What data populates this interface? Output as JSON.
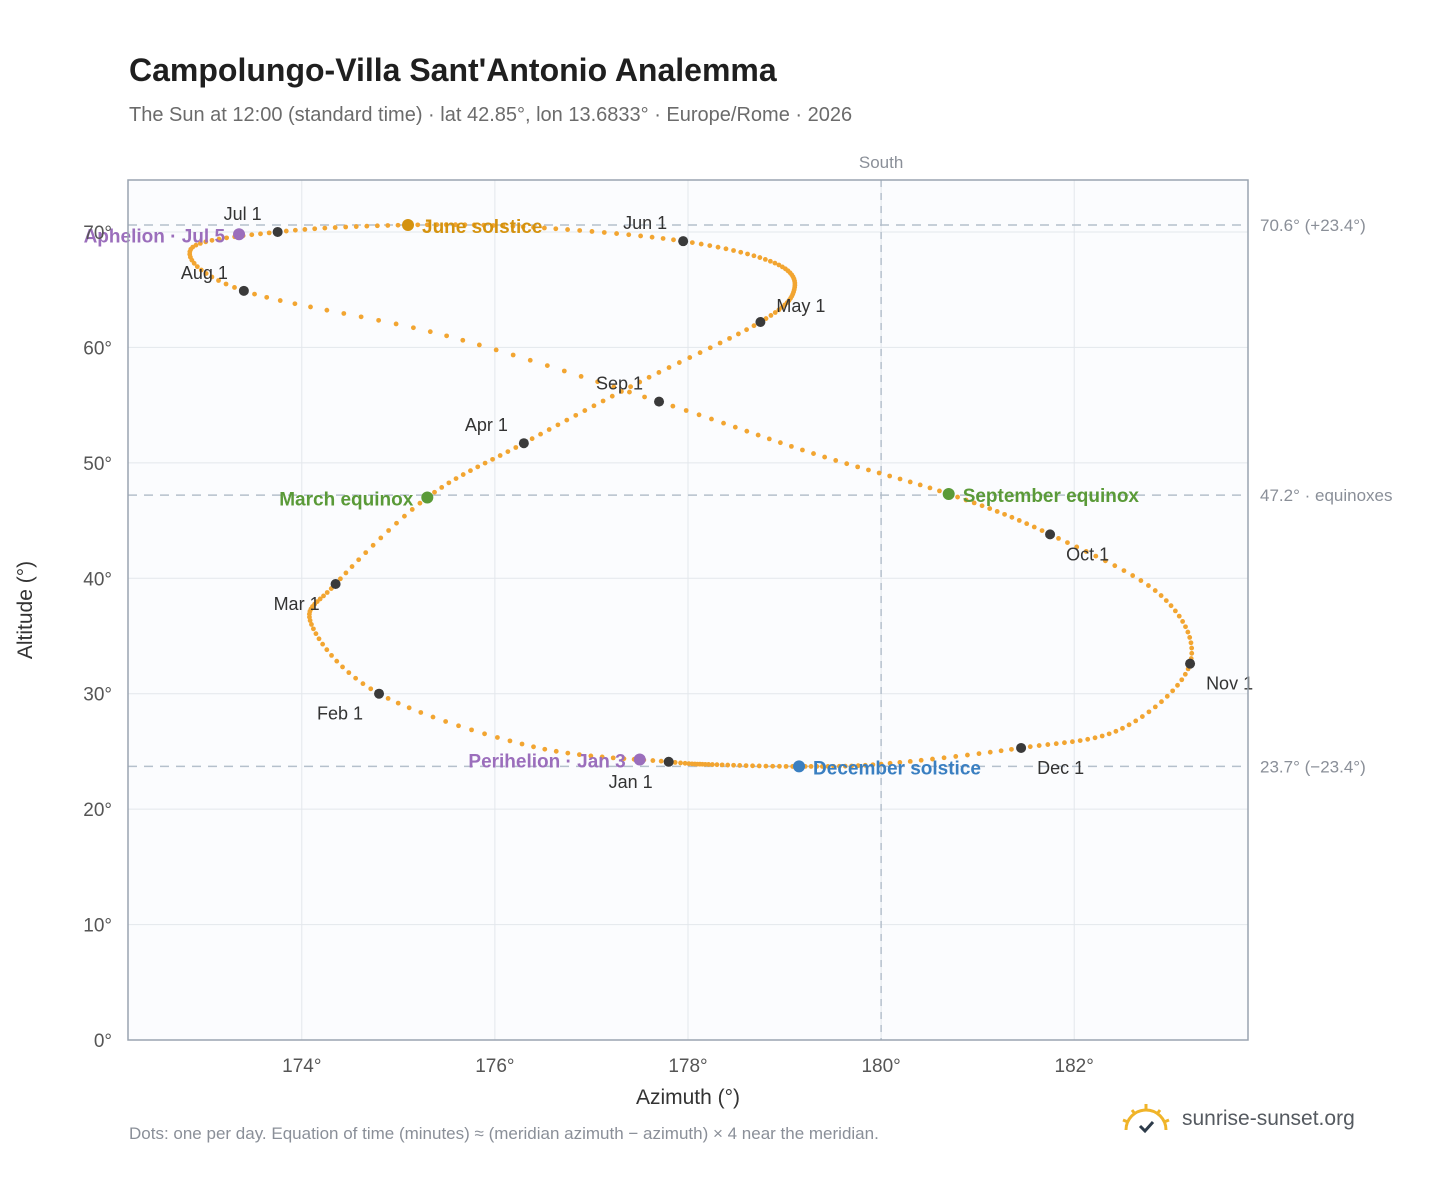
{
  "header": {
    "title": "Campolungo-Villa Sant'Antonio Analemma",
    "subtitle": "The Sun at 12:00 (standard time) · lat 42.85°, lon 13.6833° · Europe/Rome · 2026"
  },
  "footer": {
    "note": "Dots: one per day. Equation of time (minutes) ≈ (meridian azimuth − azimuth) × 4 near the meridian.",
    "brand": "sunrise-sunset.org",
    "brand_icon": "sun-logo-icon"
  },
  "colors": {
    "curve": "#f2a531",
    "month_marker": "#3a3a3a",
    "june_solstice": "#d4920f",
    "december_solstice": "#3a7fc1",
    "equinox": "#5a9a38",
    "apsis": "#9b6ebc",
    "reference_line": "#b5c0cc",
    "plot_bg": "#fbfcfe"
  },
  "chart_data": {
    "type": "scatter",
    "title": "Campolungo-Villa Sant'Antonio Analemma",
    "subtitle": "The Sun at 12:00 (standard time) · lat 42.85°, lon 13.6833° · Europe/Rome · 2026",
    "xlabel": "Azimuth (°)",
    "ylabel": "Altitude (°)",
    "xlim": [
      172.2,
      183.8
    ],
    "ylim": [
      0,
      74.5
    ],
    "x_ticks": [
      174,
      176,
      178,
      180,
      182
    ],
    "x_tick_labels": [
      "174°",
      "176°",
      "178°",
      "180°",
      "182°"
    ],
    "y_ticks": [
      0,
      10,
      20,
      30,
      40,
      50,
      60,
      70
    ],
    "y_tick_labels": [
      "0°",
      "10°",
      "20°",
      "30°",
      "40°",
      "50°",
      "60°",
      "70°"
    ],
    "grid": true,
    "south_line": {
      "azimuth": 180,
      "label": "South"
    },
    "reference_lines": [
      {
        "altitude": 70.6,
        "label": "70.6° (+23.4°)"
      },
      {
        "altitude": 47.2,
        "label": "47.2° · equinoxes"
      },
      {
        "altitude": 23.7,
        "label": "23.7° (−23.4°)"
      }
    ],
    "curve_anchors": [
      {
        "x": 177.8,
        "y": 24.1
      },
      {
        "x": 176.4,
        "y": 25.4
      },
      {
        "x": 174.8,
        "y": 30.0
      },
      {
        "x": 174.1,
        "y": 36.0
      },
      {
        "x": 174.35,
        "y": 39.5
      },
      {
        "x": 175.3,
        "y": 47.0
      },
      {
        "x": 176.3,
        "y": 51.7
      },
      {
        "x": 177.5,
        "y": 57.0
      },
      {
        "x": 178.75,
        "y": 62.2
      },
      {
        "x": 179.1,
        "y": 65.0
      },
      {
        "x": 178.9,
        "y": 67.3
      },
      {
        "x": 177.95,
        "y": 69.2
      },
      {
        "x": 176.4,
        "y": 70.4
      },
      {
        "x": 175.1,
        "y": 70.6
      },
      {
        "x": 173.75,
        "y": 70.0
      },
      {
        "x": 172.85,
        "y": 68.5
      },
      {
        "x": 173.4,
        "y": 64.9
      },
      {
        "x": 175.5,
        "y": 61.0
      },
      {
        "x": 177.7,
        "y": 55.3
      },
      {
        "x": 179.3,
        "y": 50.8
      },
      {
        "x": 180.7,
        "y": 47.3
      },
      {
        "x": 181.75,
        "y": 43.8
      },
      {
        "x": 182.9,
        "y": 38.5
      },
      {
        "x": 183.2,
        "y": 32.6
      },
      {
        "x": 182.5,
        "y": 27.0
      },
      {
        "x": 181.45,
        "y": 25.3
      },
      {
        "x": 180.0,
        "y": 23.9
      },
      {
        "x": 179.15,
        "y": 23.7
      },
      {
        "x": 178.3,
        "y": 23.85
      }
    ],
    "month_markers": [
      {
        "label": "Jan 1",
        "x": 177.8,
        "y": 24.1,
        "label_pos": "below-left"
      },
      {
        "label": "Feb 1",
        "x": 174.8,
        "y": 30.0,
        "label_pos": "below-left"
      },
      {
        "label": "Mar 1",
        "x": 174.35,
        "y": 39.5,
        "label_pos": "below-left"
      },
      {
        "label": "Apr 1",
        "x": 176.3,
        "y": 51.7,
        "label_pos": "above-left"
      },
      {
        "label": "May 1",
        "x": 178.75,
        "y": 62.2,
        "label_pos": "above-right"
      },
      {
        "label": "Jun 1",
        "x": 177.95,
        "y": 69.2,
        "label_pos": "above-left"
      },
      {
        "label": "Jul 1",
        "x": 173.75,
        "y": 70.0,
        "label_pos": "above-left"
      },
      {
        "label": "Aug 1",
        "x": 173.4,
        "y": 64.9,
        "label_pos": "above-left"
      },
      {
        "label": "Sep 1",
        "x": 177.7,
        "y": 55.3,
        "label_pos": "above-left"
      },
      {
        "label": "Oct 1",
        "x": 181.75,
        "y": 43.8,
        "label_pos": "below-right"
      },
      {
        "label": "Nov 1",
        "x": 183.2,
        "y": 32.6,
        "label_pos": "below-right"
      },
      {
        "label": "Dec 1",
        "x": 181.45,
        "y": 25.3,
        "label_pos": "below-right"
      }
    ],
    "events": [
      {
        "label": "June solstice",
        "x": 175.1,
        "y": 70.6,
        "color": "#d4920f",
        "label_pos": "right"
      },
      {
        "label": "December solstice",
        "x": 179.15,
        "y": 23.7,
        "color": "#3a7fc1",
        "label_pos": "right"
      },
      {
        "label": "March equinox",
        "x": 175.3,
        "y": 47.0,
        "color": "#5a9a38",
        "label_pos": "left"
      },
      {
        "label": "September equinox",
        "x": 180.7,
        "y": 47.3,
        "color": "#5a9a38",
        "label_pos": "right"
      },
      {
        "label": "Aphelion · Jul 5",
        "x": 173.35,
        "y": 69.8,
        "color": "#9b6ebc",
        "label_pos": "left"
      },
      {
        "label": "Perihelion · Jan 3",
        "x": 177.5,
        "y": 24.3,
        "color": "#9b6ebc",
        "label_pos": "left"
      }
    ]
  }
}
